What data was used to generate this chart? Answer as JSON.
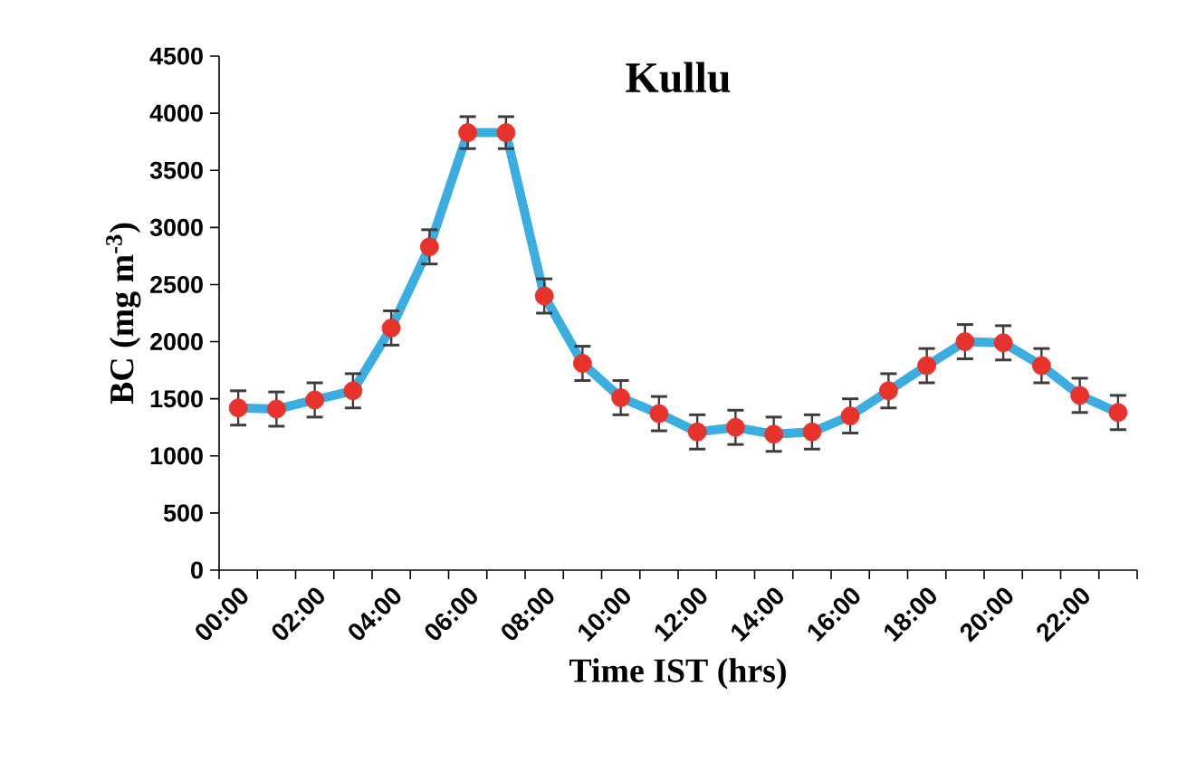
{
  "chart_data": {
    "type": "line",
    "title": "Kullu",
    "xlabel": "Time IST (hrs)",
    "ylabel": "BC (mg m$^{-3}$)",
    "categories": [
      "00:00",
      null,
      "02:00",
      null,
      "04:00",
      null,
      "06:00",
      null,
      "08:00",
      null,
      "10:00",
      null,
      "12:00",
      null,
      "14:00",
      null,
      "16:00",
      null,
      "18:00",
      null,
      "20:00",
      null,
      "22:00",
      null
    ],
    "series": [
      {
        "color": "#3aaee0",
        "colors": [
          "#e8322c",
          "#e8322c",
          "#e8322c",
          "#e8322c",
          "#e8322c",
          "#e8322c",
          "#e8322c",
          "#e8322c",
          "#e8322c",
          "#e8322c",
          "#e8322c",
          "#e8322c",
          "#e8322c",
          "#e8322c",
          "#e8322c",
          "#e8322c",
          "#e8322c",
          "#e8322c",
          "#e8322c",
          "#e8322c",
          "#e8322c",
          "#e8322c",
          "#e8322c",
          "#e8322c"
        ],
        "values": [
          1420,
          1410,
          1490,
          1570,
          2120,
          2830,
          3830,
          3830,
          2400,
          1810,
          1510,
          1370,
          1210,
          1250,
          1190,
          1210,
          1350,
          1570,
          1790,
          2000,
          1990,
          1790,
          1530,
          1380
        ],
        "errors": [
          150,
          150,
          150,
          150,
          150,
          150,
          140,
          140,
          150,
          150,
          150,
          150,
          150,
          150,
          150,
          150,
          150,
          150,
          150,
          150,
          150,
          150,
          150,
          150
        ]
      }
    ],
    "ylim": [
      0,
      4500
    ],
    "yticks": [
      0,
      500,
      1000,
      1500,
      2000,
      2500,
      3000,
      3500,
      4000,
      4500
    ],
    "marker": "circle",
    "line_style": "solid",
    "grid": false
  }
}
